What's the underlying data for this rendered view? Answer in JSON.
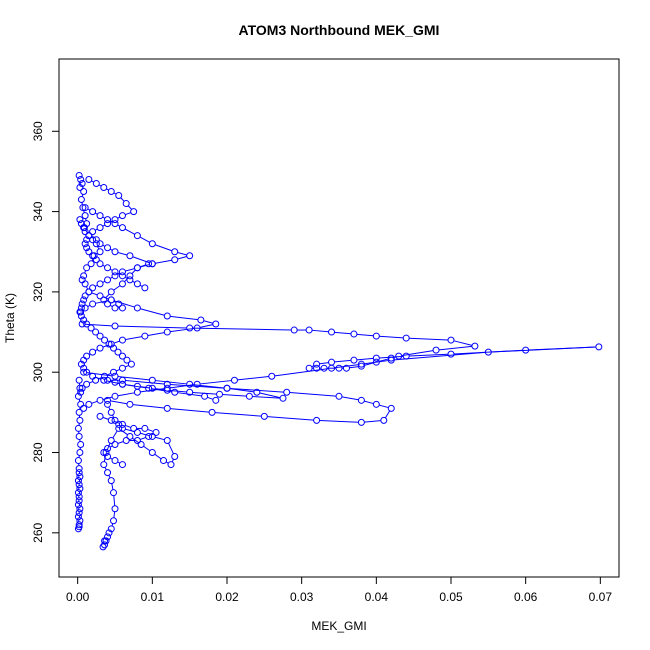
{
  "chart_data": {
    "type": "scatter",
    "title": "ATOM3 Northbound MEK_GMI",
    "xlabel": "MEK_GMI",
    "ylabel": "Theta (K)",
    "xlim": [
      -0.0025,
      0.0725
    ],
    "ylim": [
      249,
      378
    ],
    "x_ticks": [
      0.0,
      0.01,
      0.02,
      0.03,
      0.04,
      0.05,
      0.06,
      0.07
    ],
    "x_tick_labels": [
      "0.00",
      "0.01",
      "0.02",
      "0.03",
      "0.04",
      "0.05",
      "0.06",
      "0.07"
    ],
    "y_ticks": [
      260,
      280,
      300,
      320,
      340,
      360
    ],
    "y_tick_labels": [
      "260",
      "280",
      "300",
      "320",
      "340",
      "360"
    ],
    "grid": false,
    "legend": "none",
    "marker": "open-circle",
    "connected": true,
    "color": "#0000ff",
    "series": [
      {
        "x": [
          0.0002,
          0.0004,
          0.0003,
          0.0006,
          0.0008,
          0.0005,
          0.0007,
          0.001,
          0.0012,
          0.0009,
          0.0015,
          0.002,
          0.0025,
          0.003,
          0.0022,
          0.0018,
          0.0012,
          0.0008,
          0.0006,
          0.001,
          0.0015,
          0.003,
          0.0045,
          0.0055,
          0.006,
          0.005,
          0.004,
          0.0035,
          0.0045,
          0.006,
          0.007,
          0.008,
          0.0095,
          0.01,
          0.007,
          0.005,
          0.004,
          0.003,
          0.0025,
          0.0015,
          0.001,
          0.0008,
          0.0005,
          0.0003
        ],
        "y": [
          349,
          348,
          346,
          347,
          345,
          343,
          341,
          339,
          337,
          336,
          334,
          333,
          332,
          330,
          329,
          327,
          326,
          324,
          323,
          322,
          320,
          319,
          318,
          317,
          316,
          316,
          317,
          318,
          320,
          322,
          324,
          326,
          327,
          327,
          329,
          330,
          331,
          332,
          333,
          334,
          335,
          336,
          337,
          338
        ]
      },
      {
        "x": [
          0.0003,
          0.001,
          0.002,
          0.0045,
          0.008,
          0.012,
          0.0165,
          0.0185,
          0.016,
          0.012,
          0.009,
          0.006,
          0.0045,
          0.003,
          0.002,
          0.0012,
          0.0008,
          0.0005,
          0.0008,
          0.0012,
          0.002,
          0.0035,
          0.006,
          0.0095,
          0.013,
          0.017,
          0.0185
        ],
        "y": [
          315,
          316,
          317,
          318,
          316,
          314,
          313,
          312,
          311,
          310,
          309,
          308,
          307,
          306,
          305,
          304,
          303,
          302,
          301,
          300,
          299,
          298,
          297,
          296,
          295,
          294,
          293
        ]
      },
      {
        "x": [
          0.0006,
          0.005,
          0.015,
          0.029,
          0.031,
          0.034,
          0.037,
          0.04,
          0.044,
          0.05,
          0.0532,
          0.048,
          0.043,
          0.042,
          0.04,
          0.038,
          0.036,
          0.035,
          0.033,
          0.032,
          0.031,
          0.032,
          0.034,
          0.037,
          0.04,
          0.044,
          0.05,
          0.06,
          0.0698,
          0.055,
          0.042,
          0.038,
          0.034,
          0.026,
          0.021,
          0.016,
          0.012,
          0.008,
          0.005,
          0.003,
          0.0015,
          0.0008
        ],
        "y": [
          312,
          311.5,
          311,
          310.5,
          310.5,
          310,
          309.5,
          309,
          308.5,
          308,
          306.5,
          305.5,
          304,
          303.5,
          302.5,
          301.5,
          301,
          301,
          301,
          301,
          301,
          302,
          302.5,
          303,
          303.5,
          304,
          304.5,
          305.5,
          306.3,
          305,
          303,
          302,
          301,
          299,
          298,
          297,
          296,
          295,
          294,
          293,
          292,
          291
        ]
      },
      {
        "x": [
          0.0008,
          0.005,
          0.01,
          0.015,
          0.02,
          0.024,
          0.0275,
          0.023,
          0.019,
          0.015,
          0.012,
          0.01,
          0.008,
          0.006,
          0.005,
          0.004,
          0.006,
          0.012,
          0.02,
          0.028,
          0.035,
          0.038,
          0.04,
          0.042,
          0.041,
          0.038,
          0.032,
          0.025,
          0.018,
          0.012,
          0.007,
          0.004
        ],
        "y": [
          300,
          299,
          298,
          297,
          296,
          295,
          293.5,
          294,
          294.5,
          295,
          295.5,
          296,
          296.5,
          297,
          297.5,
          298,
          298,
          297,
          296,
          295,
          294,
          293,
          292,
          291,
          288,
          287.5,
          288,
          289,
          290,
          291,
          292,
          293
        ]
      },
      {
        "x": [
          0.004,
          0.0045,
          0.005,
          0.0055,
          0.006,
          0.008,
          0.01,
          0.012,
          0.013,
          0.0125,
          0.0115,
          0.01,
          0.0085,
          0.007,
          0.0055,
          0.0045,
          0.0038,
          0.0035,
          0.004,
          0.0045,
          0.0048,
          0.005,
          0.0048,
          0.0045,
          0.0042,
          0.004,
          0.0038,
          0.0036,
          0.0034,
          0.0036
        ],
        "y": [
          292,
          290,
          288,
          287,
          286,
          285,
          284,
          283,
          279,
          277,
          278,
          280,
          282,
          284,
          286,
          283,
          280,
          277,
          275,
          273,
          270,
          266,
          263,
          261,
          260,
          259,
          258,
          257,
          256.5,
          258
        ]
      },
      {
        "x": [
          0.0002,
          0.0003,
          0.0001,
          0.0004,
          0.0002,
          0.0003,
          0.0001,
          0.0002,
          0.0004,
          0.0003,
          0.0001,
          0.0002,
          0.0003,
          0.0002,
          0.0001,
          0.0002,
          0.0003,
          0.0001,
          0.0002,
          0.0001,
          0.0002,
          0.0003,
          0.0002,
          0.0001,
          0.0002,
          0.0003,
          0.0001,
          0.0002
        ],
        "y": [
          298,
          296,
          294,
          292,
          290,
          288,
          286,
          284,
          282,
          280,
          278,
          276,
          274,
          272,
          270,
          268,
          266,
          264,
          262,
          261,
          261.5,
          263,
          265,
          267,
          269,
          271,
          273,
          275
        ]
      },
      {
        "x": [
          0.001,
          0.002,
          0.003,
          0.004,
          0.005,
          0.006,
          0.008,
          0.01,
          0.013,
          0.015,
          0.013,
          0.01,
          0.008,
          0.006,
          0.005,
          0.004,
          0.003,
          0.002,
          0.0015,
          0.001,
          0.0008,
          0.0006,
          0.0005,
          0.0004
        ],
        "y": [
          341,
          340,
          339,
          338,
          337,
          336,
          334,
          332,
          330,
          329,
          328,
          327,
          326,
          325,
          324,
          323,
          322,
          321,
          320,
          319,
          318,
          317,
          316,
          315
        ]
      },
      {
        "x": [
          0.0015,
          0.0025,
          0.0035,
          0.0045,
          0.0055,
          0.0065,
          0.0075,
          0.006,
          0.005,
          0.004,
          0.003,
          0.002,
          0.0015,
          0.0012,
          0.001,
          0.0012,
          0.0015,
          0.002,
          0.0025,
          0.003,
          0.004,
          0.005,
          0.006,
          0.007,
          0.008,
          0.009
        ],
        "y": [
          348,
          347,
          346,
          345,
          344,
          342,
          340,
          339,
          338,
          337,
          336,
          335,
          334,
          333,
          332,
          331,
          330,
          329,
          328,
          327,
          326,
          325,
          324,
          323,
          322,
          321
        ]
      },
      {
        "x": [
          0.0005,
          0.0008,
          0.0012,
          0.0018,
          0.0024,
          0.003,
          0.0036,
          0.0042,
          0.0048,
          0.0054,
          0.006,
          0.0066,
          0.0072,
          0.006,
          0.0048,
          0.0036,
          0.0024,
          0.0012,
          0.0006,
          0.0004
        ],
        "y": [
          314,
          313,
          312,
          311,
          310,
          309,
          308,
          307,
          306,
          305,
          304,
          303,
          302,
          301,
          300,
          299,
          298,
          297,
          296,
          295
        ]
      },
      {
        "x": [
          0.003,
          0.0045,
          0.006,
          0.0075,
          0.009,
          0.0105,
          0.0095,
          0.008,
          0.0065,
          0.005,
          0.004,
          0.0035,
          0.004,
          0.005,
          0.006
        ],
        "y": [
          289,
          288,
          287,
          286,
          286,
          285,
          284,
          283,
          283,
          282,
          281,
          280,
          279,
          278,
          277
        ]
      }
    ]
  }
}
